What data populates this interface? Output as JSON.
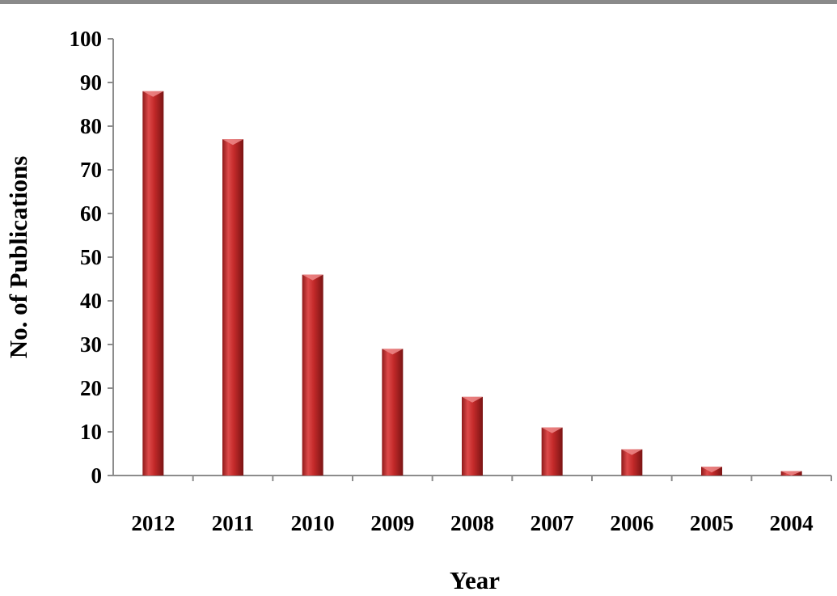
{
  "chart_data": {
    "type": "bar",
    "title": "",
    "xlabel": "Year",
    "ylabel": "No. of Publications",
    "categories": [
      "2012",
      "2011",
      "2010",
      "2009",
      "2008",
      "2007",
      "2006",
      "2005",
      "2004"
    ],
    "series": [
      {
        "values": [
          88,
          77,
          46,
          29,
          18,
          11,
          6,
          2,
          1
        ]
      }
    ],
    "ylim": [
      0,
      100
    ],
    "yticks": [
      0,
      10,
      20,
      30,
      40,
      50,
      60,
      70,
      80,
      90,
      100
    ],
    "grid": false,
    "legend": "none",
    "bar_color": "#c42a2a"
  }
}
